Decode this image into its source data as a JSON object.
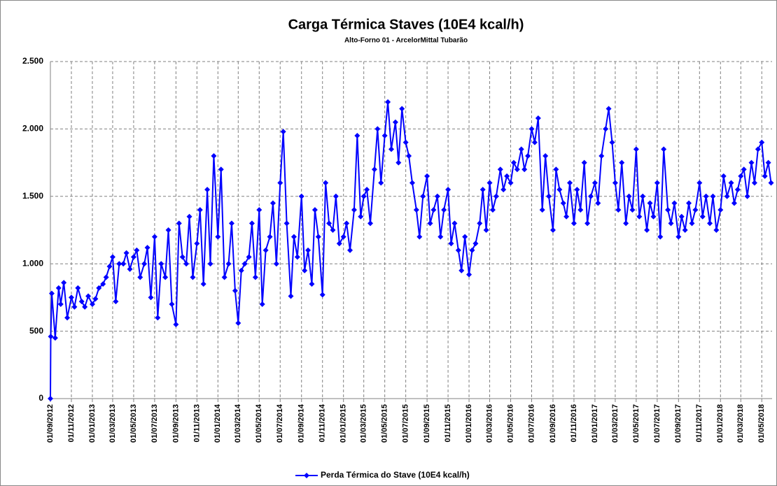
{
  "chart_data": {
    "type": "line",
    "title": "Carga Térmica Staves (10E4 kcal/h)",
    "subtitle": "Alto-Forno 01 - ArcelorMittal Tubarão",
    "x": [
      "01/09/2012",
      "02/09/2012",
      "05/09/2012",
      "15/09/2012",
      "25/09/2012",
      "01/10/2012",
      "10/10/2012",
      "20/10/2012",
      "01/11/2012",
      "10/11/2012",
      "20/11/2012",
      "01/12/2012",
      "10/12/2012",
      "20/12/2012",
      "01/01/2013",
      "10/01/2013",
      "20/01/2013",
      "01/02/2013",
      "10/02/2013",
      "20/02/2013",
      "01/03/2013",
      "10/03/2013",
      "20/03/2013",
      "01/04/2013",
      "10/04/2013",
      "20/04/2013",
      "01/05/2013",
      "10/05/2013",
      "20/05/2013",
      "01/06/2013",
      "10/06/2013",
      "20/06/2013",
      "01/07/2013",
      "10/07/2013",
      "20/07/2013",
      "01/08/2013",
      "10/08/2013",
      "20/08/2013",
      "01/09/2013",
      "10/09/2013",
      "20/09/2013",
      "01/10/2013",
      "10/10/2013",
      "20/10/2013",
      "01/11/2013",
      "10/11/2013",
      "20/11/2013",
      "01/12/2013",
      "10/12/2013",
      "20/12/2013",
      "01/01/2014",
      "10/01/2014",
      "20/01/2014",
      "01/02/2014",
      "10/02/2014",
      "20/02/2014",
      "01/03/2014",
      "10/03/2014",
      "20/03/2014",
      "01/04/2014",
      "10/04/2014",
      "20/04/2014",
      "01/05/2014",
      "10/05/2014",
      "20/05/2014",
      "01/06/2014",
      "10/06/2014",
      "20/06/2014",
      "01/07/2014",
      "10/07/2014",
      "20/07/2014",
      "01/08/2014",
      "10/08/2014",
      "20/08/2014",
      "01/09/2014",
      "10/09/2014",
      "20/09/2014",
      "01/10/2014",
      "10/10/2014",
      "20/10/2014",
      "01/11/2014",
      "10/11/2014",
      "20/11/2014",
      "01/12/2014",
      "10/12/2014",
      "20/12/2014",
      "01/01/2015",
      "10/01/2015",
      "20/01/2015",
      "01/02/2015",
      "10/02/2015",
      "20/02/2015",
      "01/03/2015",
      "10/03/2015",
      "20/03/2015",
      "01/04/2015",
      "10/04/2015",
      "20/04/2015",
      "01/05/2015",
      "10/05/2015",
      "20/05/2015",
      "01/06/2015",
      "10/06/2015",
      "20/06/2015",
      "01/07/2015",
      "10/07/2015",
      "20/07/2015",
      "01/08/2015",
      "10/08/2015",
      "20/08/2015",
      "01/09/2015",
      "10/09/2015",
      "20/09/2015",
      "01/10/2015",
      "10/10/2015",
      "20/10/2015",
      "01/11/2015",
      "10/11/2015",
      "20/11/2015",
      "01/12/2015",
      "10/12/2015",
      "20/12/2015",
      "01/01/2016",
      "10/01/2016",
      "20/01/2016",
      "01/02/2016",
      "10/02/2016",
      "20/02/2016",
      "01/03/2016",
      "10/03/2016",
      "20/03/2016",
      "01/04/2016",
      "10/04/2016",
      "20/04/2016",
      "01/05/2016",
      "10/05/2016",
      "20/05/2016",
      "01/06/2016",
      "10/06/2016",
      "20/06/2016",
      "01/07/2016",
      "10/07/2016",
      "20/07/2016",
      "01/08/2016",
      "10/08/2016",
      "20/08/2016",
      "01/09/2016",
      "10/09/2016",
      "20/09/2016",
      "01/10/2016",
      "10/10/2016",
      "20/10/2016",
      "01/11/2016",
      "10/11/2016",
      "20/11/2016",
      "01/12/2016",
      "10/12/2016",
      "20/12/2016",
      "01/01/2017",
      "10/01/2017",
      "20/01/2017",
      "01/02/2017",
      "10/02/2017",
      "20/02/2017",
      "01/03/2017",
      "10/03/2017",
      "20/03/2017",
      "01/04/2017",
      "10/04/2017",
      "20/04/2017",
      "01/05/2017",
      "10/05/2017",
      "20/05/2017",
      "01/06/2017",
      "10/06/2017",
      "20/06/2017",
      "01/07/2017",
      "10/07/2017",
      "20/07/2017",
      "01/08/2017",
      "10/08/2017",
      "20/08/2017",
      "01/09/2017",
      "10/09/2017",
      "20/09/2017",
      "01/10/2017",
      "10/10/2017",
      "20/10/2017",
      "01/11/2017",
      "10/11/2017",
      "20/11/2017",
      "01/12/2017",
      "10/12/2017",
      "20/12/2017",
      "01/01/2018",
      "10/01/2018",
      "20/01/2018",
      "01/02/2018",
      "10/02/2018",
      "20/02/2018",
      "01/03/2018",
      "10/03/2018",
      "20/03/2018",
      "01/04/2018",
      "10/04/2018",
      "20/04/2018",
      "01/05/2018",
      "10/05/2018",
      "20/05/2018",
      "28/05/2018"
    ],
    "series": [
      {
        "name": "Perda Térmica do Stave (10E4  kcal/h)",
        "color": "#0000ff",
        "values": [
          0,
          460,
          780,
          450,
          820,
          700,
          860,
          600,
          750,
          680,
          820,
          720,
          680,
          760,
          700,
          740,
          820,
          850,
          900,
          980,
          1050,
          720,
          1000,
          1000,
          1080,
          960,
          1050,
          1100,
          900,
          1000,
          1120,
          750,
          1200,
          600,
          1000,
          900,
          1250,
          700,
          550,
          1300,
          1050,
          1000,
          1350,
          900,
          1150,
          1400,
          850,
          1550,
          1000,
          1800,
          1200,
          1700,
          900,
          1000,
          1300,
          800,
          560,
          950,
          1000,
          1050,
          1300,
          900,
          1400,
          700,
          1100,
          1200,
          1450,
          1000,
          1600,
          1980,
          1300,
          760,
          1200,
          1050,
          1500,
          950,
          1100,
          850,
          1400,
          1200,
          770,
          1600,
          1300,
          1250,
          1500,
          1150,
          1200,
          1300,
          1100,
          1400,
          1950,
          1350,
          1500,
          1550,
          1300,
          1700,
          2000,
          1600,
          1950,
          2200,
          1850,
          2050,
          1750,
          2150,
          1900,
          1800,
          1600,
          1400,
          1200,
          1500,
          1650,
          1300,
          1400,
          1500,
          1200,
          1400,
          1550,
          1150,
          1300,
          1100,
          950,
          1200,
          920,
          1100,
          1150,
          1300,
          1550,
          1250,
          1600,
          1400,
          1500,
          1700,
          1550,
          1650,
          1600,
          1750,
          1700,
          1850,
          1700,
          1800,
          2000,
          1900,
          2080,
          1400,
          1800,
          1500,
          1250,
          1700,
          1550,
          1450,
          1350,
          1600,
          1300,
          1550,
          1400,
          1750,
          1300,
          1500,
          1600,
          1450,
          1800,
          2000,
          2150,
          1900,
          1600,
          1400,
          1750,
          1300,
          1500,
          1400,
          1850,
          1350,
          1500,
          1250,
          1450,
          1350,
          1600,
          1200,
          1850,
          1400,
          1300,
          1450,
          1200,
          1350,
          1250,
          1450,
          1300,
          1400,
          1600,
          1350,
          1500,
          1300,
          1500,
          1250,
          1400,
          1650,
          1500,
          1600,
          1450,
          1550,
          1650,
          1700,
          1500,
          1750,
          1600,
          1850,
          1900,
          1650,
          1750,
          1600
        ]
      }
    ],
    "xlim": [
      "01/09/2012",
      "31/05/2018"
    ],
    "xticks": [
      "01/09/2012",
      "01/11/2012",
      "01/01/2013",
      "01/03/2013",
      "01/05/2013",
      "01/07/2013",
      "01/09/2013",
      "01/11/2013",
      "01/01/2014",
      "01/03/2014",
      "01/05/2014",
      "01/07/2014",
      "01/09/2014",
      "01/11/2014",
      "01/01/2015",
      "01/03/2015",
      "01/05/2015",
      "01/07/2015",
      "01/09/2015",
      "01/11/2015",
      "01/01/2016",
      "01/03/2016",
      "01/05/2016",
      "01/07/2016",
      "01/09/2016",
      "01/11/2016",
      "01/01/2017",
      "01/03/2017",
      "01/05/2017",
      "01/07/2017",
      "01/09/2017",
      "01/11/2017",
      "01/01/2018",
      "01/03/2018",
      "01/05/2018"
    ],
    "ylim": [
      0,
      2500
    ],
    "yticks": [
      0,
      500,
      {
        "value": 1000,
        "label": "1.000"
      },
      {
        "value": 1500,
        "label": "1.500"
      },
      {
        "value": 2000,
        "label": "2.000"
      },
      {
        "value": 2500,
        "label": "2.500"
      }
    ],
    "grid": true,
    "legend": "bottom"
  }
}
